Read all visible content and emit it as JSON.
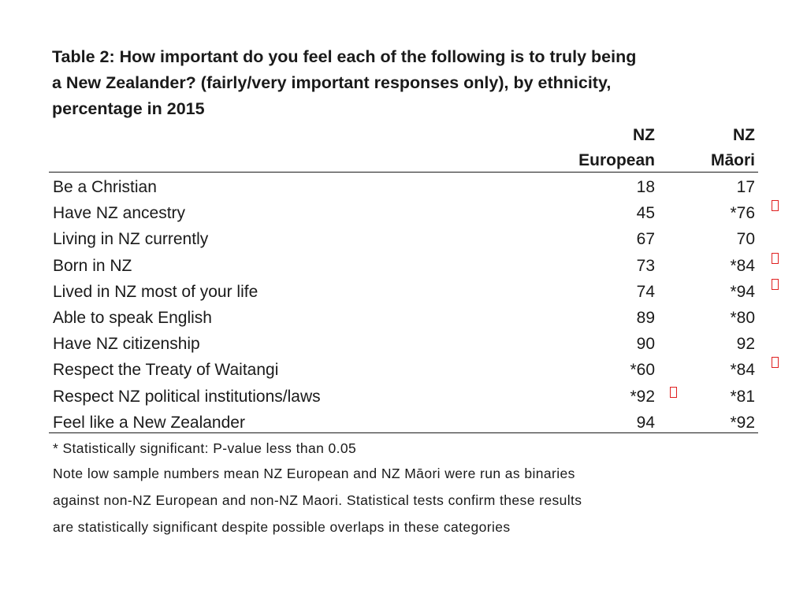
{
  "title_lines": [
    "Table 2: How important do you feel each of the following is to  truly being",
    "a New Zealander? (fairly/very important responses only), by ethnicity,",
    "percentage in 2015"
  ],
  "columns": [
    {
      "line1": "NZ",
      "line2": "European"
    },
    {
      "line1": "NZ",
      "line2": "Māori"
    }
  ],
  "rows": [
    {
      "label": "Be a Christian",
      "european": "18",
      "maori": "17",
      "mark_european": false,
      "mark_maori": false
    },
    {
      "label": "Have NZ ancestry",
      "european": "45",
      "maori": "*76",
      "mark_european": false,
      "mark_maori": true
    },
    {
      "label": "Living in NZ currently",
      "european": "67",
      "maori": "70",
      "mark_european": false,
      "mark_maori": false
    },
    {
      "label": "Born in NZ",
      "european": "73",
      "maori": "*84",
      "mark_european": false,
      "mark_maori": true
    },
    {
      "label": "Lived in NZ most of your life",
      "european": "74",
      "maori": "*94",
      "mark_european": false,
      "mark_maori": true
    },
    {
      "label": "Able to speak English",
      "european": "89",
      "maori": "*80",
      "mark_european": false,
      "mark_maori": false
    },
    {
      "label": "Have NZ citizenship",
      "european": "90",
      "maori": "92",
      "mark_european": false,
      "mark_maori": false
    },
    {
      "label": "Respect the Treaty of Waitangi",
      "european": "*60",
      "maori": "*84",
      "mark_european": false,
      "mark_maori": true
    },
    {
      "label": "Respect NZ political institutions/laws",
      "european": "*92",
      "maori": "*81",
      "mark_european": true,
      "mark_maori": false
    },
    {
      "label": "Feel like a New Zealander",
      "european": "94",
      "maori": "*92",
      "mark_european": false,
      "mark_maori": false
    }
  ],
  "notes": [
    "* Statistically significant: P-value less than 0.05",
    "Note low sample numbers mean NZ European and NZ Māori were run as binaries",
    "against non-NZ European and non-NZ Maori. Statistical tests confirm these results",
    "are statistically significant despite possible overlaps in these categories"
  ],
  "colors": {
    "text": "#1a1a1a",
    "marker": "#e02020"
  },
  "icons": {
    "marker": "missing-glyph-box-icon"
  }
}
